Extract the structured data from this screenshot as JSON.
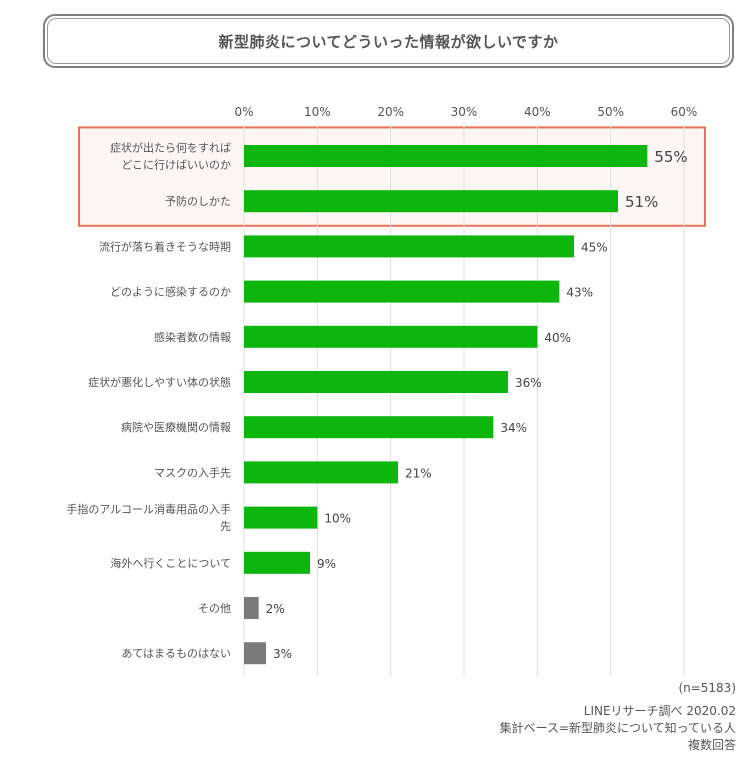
{
  "title": "新型肺炎についてどういった情報が欲しいですか",
  "chart_data": {
    "type": "bar",
    "orientation": "horizontal",
    "categories": [
      [
        "症状が出たら何をすれば",
        "どこに行けばいいのか"
      ],
      [
        "予防のしかた"
      ],
      [
        "流行が落ち着きそうな時期"
      ],
      [
        "どのように感染するのか"
      ],
      [
        "感染者数の情報"
      ],
      [
        "症状が悪化しやすい体の状態"
      ],
      [
        "病院や医療機関の情報"
      ],
      [
        "マスクの入手先"
      ],
      [
        "手指のアルコール消毒用品の入手",
        "先"
      ],
      [
        "海外へ行くことについて"
      ],
      [
        "その他"
      ],
      [
        "あてはまるものはない"
      ]
    ],
    "values": [
      55,
      51,
      45,
      43,
      40,
      36,
      34,
      21,
      10,
      9,
      2,
      3
    ],
    "value_labels": [
      "55%",
      "51%",
      "45%",
      "43%",
      "40%",
      "36%",
      "34%",
      "21%",
      "10%",
      "9%",
      "2%",
      "3%"
    ],
    "xlim": [
      0,
      60
    ],
    "x_ticks": [
      "0%",
      "10%",
      "20%",
      "30%",
      "40%",
      "50%",
      "60%"
    ],
    "highlighted_categories": [
      0,
      1
    ],
    "gray_categories": [
      10,
      11
    ],
    "grid": true,
    "colors": {
      "bar": "#0cb60c",
      "bar_other": "#7a7a7a",
      "highlight_border": "#e8715a",
      "highlight_fill": "#fdf6f3",
      "grid": "#dddddd"
    }
  },
  "footer": {
    "n": "(n=5183)",
    "source": "LINEリサーチ調べ 2020.02",
    "base": "集計ベース=新型肺炎について知っている人",
    "answer_type": "複数回答"
  }
}
